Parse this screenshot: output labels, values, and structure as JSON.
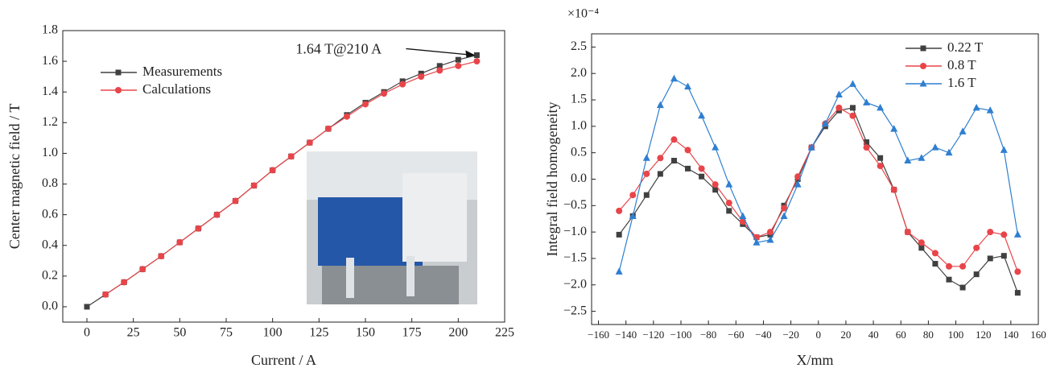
{
  "chart_data": [
    {
      "type": "line",
      "xlabel": "Current / A",
      "ylabel": "Center magnetic field / T",
      "annotation": "1.64 T@210 A",
      "legend": "upper left",
      "x": [
        0,
        10,
        20,
        30,
        40,
        50,
        60,
        70,
        80,
        90,
        100,
        110,
        120,
        130,
        140,
        150,
        160,
        170,
        180,
        190,
        200,
        210
      ],
      "series": [
        {
          "name": "Measurements",
          "color": "#404040",
          "marker": "square",
          "values": [
            0,
            0.08,
            0.16,
            0.245,
            0.33,
            0.42,
            0.51,
            0.6,
            0.69,
            0.79,
            0.89,
            0.98,
            1.07,
            1.16,
            1.25,
            1.33,
            1.4,
            1.47,
            1.52,
            1.57,
            1.61,
            1.64
          ]
        },
        {
          "name": "Calculations",
          "color": "#e8454a",
          "marker": "circle",
          "values": [
            null,
            0.08,
            0.16,
            0.245,
            0.33,
            0.42,
            0.51,
            0.6,
            0.69,
            0.79,
            0.89,
            0.98,
            1.07,
            1.16,
            1.24,
            1.32,
            1.39,
            1.45,
            1.5,
            1.54,
            1.57,
            1.6
          ]
        }
      ],
      "xlim": [
        -13,
        225
      ],
      "xticks": [
        0,
        25,
        50,
        75,
        100,
        125,
        150,
        175,
        200,
        225
      ],
      "ylim": [
        -0.1,
        1.8
      ],
      "yticks": [
        {
          "value": 0,
          "label": "0.0"
        },
        0.2,
        0.4,
        0.6,
        0.8,
        {
          "value": 1,
          "label": "1.0"
        },
        1.2,
        1.4,
        1.6,
        1.8
      ]
    },
    {
      "type": "line",
      "xlabel": "X/mm",
      "ylabel": "Integral field homogeneity",
      "scale_label": "×10⁻⁴",
      "legend": "upper right",
      "x": [
        -145,
        -135,
        -125,
        -115,
        -105,
        -95,
        -85,
        -75,
        -65,
        -55,
        -45,
        -35,
        -25,
        -15,
        -5,
        5,
        15,
        25,
        35,
        45,
        55,
        65,
        75,
        85,
        95,
        105,
        115,
        125,
        135,
        145
      ],
      "series": [
        {
          "name": "0.22 T",
          "color": "#404040",
          "marker": "square",
          "values": [
            -1.05,
            -0.7,
            -0.3,
            0.1,
            0.35,
            0.2,
            0.05,
            -0.2,
            -0.6,
            -0.85,
            -1.1,
            -1.05,
            -0.5,
            0,
            0.6,
            1.0,
            1.3,
            1.35,
            0.7,
            0.4,
            -0.2,
            -1.0,
            -1.3,
            -1.6,
            -1.9,
            -2.05,
            -1.8,
            -1.5,
            -1.45,
            -2.15
          ]
        },
        {
          "name": "0.8 T",
          "color": "#e8454a",
          "marker": "circle",
          "values": [
            -0.6,
            -0.3,
            0.1,
            0.4,
            0.75,
            0.55,
            0.2,
            -0.1,
            -0.45,
            -0.8,
            -1.1,
            -1.0,
            -0.55,
            0.05,
            0.6,
            1.05,
            1.35,
            1.2,
            0.6,
            0.25,
            -0.2,
            -1.0,
            -1.2,
            -1.4,
            -1.65,
            -1.65,
            -1.3,
            -1.0,
            -1.05,
            -1.75
          ]
        },
        {
          "name": "1.6 T",
          "color": "#2f7fd0",
          "marker": "triangle",
          "values": [
            -1.75,
            -0.7,
            0.4,
            1.4,
            1.9,
            1.75,
            1.2,
            0.6,
            -0.1,
            -0.7,
            -1.2,
            -1.15,
            -0.7,
            -0.1,
            0.6,
            1.05,
            1.6,
            1.8,
            1.45,
            1.35,
            0.95,
            0.35,
            0.4,
            0.6,
            0.5,
            0.9,
            1.35,
            1.3,
            0.55,
            -1.05
          ]
        }
      ],
      "xlim": [
        -165,
        160
      ],
      "xticks": [
        {
          "value": -160,
          "label": "−160"
        },
        {
          "value": -140,
          "label": "−140"
        },
        {
          "value": -120,
          "label": "−120"
        },
        {
          "value": -100,
          "label": "−100"
        },
        {
          "value": -80,
          "label": "−80"
        },
        {
          "value": -60,
          "label": "−60"
        },
        {
          "value": -40,
          "label": "−40"
        },
        {
          "value": -20,
          "label": "−20"
        },
        0,
        20,
        40,
        60,
        80,
        100,
        120,
        140,
        160
      ],
      "ylim": [
        -2.75,
        2.75
      ],
      "yticks": [
        {
          "value": -2.5,
          "label": "−2.5"
        },
        {
          "value": -2,
          "label": "−2.0"
        },
        {
          "value": -1.5,
          "label": "−1.5"
        },
        {
          "value": -1,
          "label": "−1.0"
        },
        {
          "value": -0.5,
          "label": "−0.5"
        },
        {
          "value": 0,
          "label": "0.0"
        },
        0.5,
        {
          "value": 1,
          "label": "1.0"
        },
        1.5,
        {
          "value": 2,
          "label": "2.0"
        },
        2.5
      ]
    }
  ]
}
